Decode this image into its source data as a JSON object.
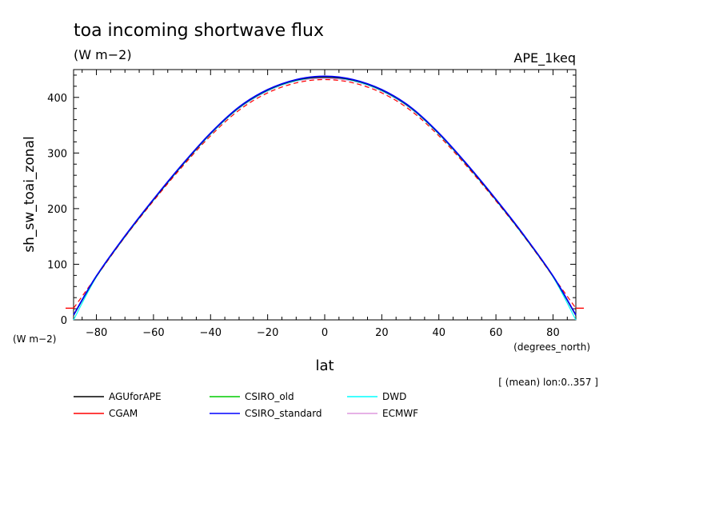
{
  "header": {
    "title": "toa incoming shortwave flux",
    "units": "(W m−2)",
    "experiment": "APE_1keq"
  },
  "footer": {
    "y_units": "(W m−2)",
    "x_units": "(degrees_north)",
    "mean_note": "[ (mean) lon:0..357 ]"
  },
  "chart_data": {
    "type": "line",
    "xlabel": "lat",
    "ylabel": "sh_sw_toai_zonal",
    "xlim": [
      -88,
      88
    ],
    "ylim": [
      0,
      450
    ],
    "xticks": [
      -80,
      -60,
      -40,
      -20,
      0,
      20,
      40,
      60,
      80
    ],
    "yticks": [
      0,
      100,
      200,
      300,
      400
    ],
    "xtick_labels": [
      "−80",
      "−60",
      "−40",
      "−20",
      "0",
      "20",
      "40",
      "60",
      "80"
    ],
    "ytick_labels": [
      "0",
      "100",
      "200",
      "300",
      "400"
    ],
    "x": [
      -88,
      -80,
      -70,
      -60,
      -50,
      -40,
      -30,
      -20,
      -10,
      0,
      10,
      20,
      30,
      40,
      50,
      60,
      70,
      80,
      88
    ],
    "series": [
      {
        "name": "AGUforAPE",
        "color": "#000000",
        "values": [
          8,
          78,
          150,
          216,
          278,
          335,
          382,
          413,
          431,
          436,
          431,
          413,
          382,
          335,
          278,
          216,
          150,
          78,
          8
        ]
      },
      {
        "name": "CGAM",
        "color": "#ff0000",
        "values": [
          21,
          78,
          149,
          214,
          275,
          331,
          377,
          408,
          426,
          432,
          426,
          408,
          377,
          331,
          275,
          214,
          149,
          78,
          21
        ]
      },
      {
        "name": "CSIRO_old",
        "color": "#00cc00",
        "values": [
          8,
          78,
          150,
          216,
          278,
          335,
          382,
          413,
          431,
          437,
          431,
          413,
          382,
          335,
          278,
          216,
          150,
          78,
          8
        ]
      },
      {
        "name": "CSIRO_standard",
        "color": "#0000ff",
        "values": [
          9,
          79,
          151,
          217,
          279,
          336,
          383,
          414,
          432,
          438,
          432,
          414,
          383,
          336,
          279,
          217,
          151,
          79,
          9
        ]
      },
      {
        "name": "DWD",
        "color": "#00ffff",
        "values": [
          0,
          77,
          149,
          215,
          277,
          334,
          381,
          412,
          430,
          436,
          430,
          412,
          381,
          334,
          277,
          215,
          149,
          77,
          0
        ]
      },
      {
        "name": "ECMWF",
        "color": "#dd99dd",
        "values": [
          8,
          78,
          150,
          215,
          277,
          334,
          380,
          411,
          429,
          434,
          429,
          411,
          380,
          334,
          277,
          215,
          150,
          78,
          8
        ]
      }
    ],
    "legend_position": "bottom-left"
  }
}
